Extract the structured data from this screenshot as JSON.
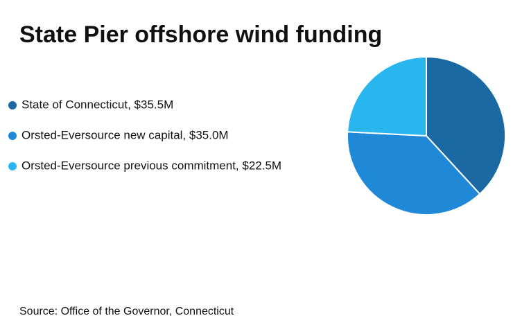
{
  "chart_data": {
    "type": "pie",
    "title": "State Pier offshore wind funding",
    "categories": [
      "State of Connecticut, $35.5M",
      "Orsted-Eversource new capital, $35.0M",
      "Orsted-Eversource previous commitment, $22.5M"
    ],
    "values": [
      35.5,
      35.0,
      22.5
    ],
    "colors": [
      "#1b69a3",
      "#1f88d7",
      "#29b6ef"
    ],
    "source": "Source: Office of the Governor, Connecticut"
  }
}
